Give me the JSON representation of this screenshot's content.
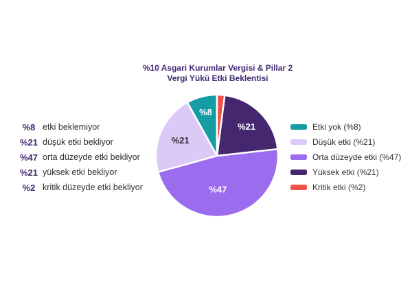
{
  "title": {
    "line1": "%10 Asgari Kurumlar Vergisi & Pillar 2",
    "line2": "Vergi Yükü Etki Beklentisi"
  },
  "left_list": {
    "items": [
      {
        "percent": "%8",
        "label": "etki beklemiyor"
      },
      {
        "percent": "%21",
        "label": "düşük etki bekliyor"
      },
      {
        "percent": "%47",
        "label": "orta düzeyde etki bekliyor"
      },
      {
        "percent": "%21",
        "label": "yüksek etki bekliyor"
      },
      {
        "percent": "%2",
        "label": "kritik düzeyde etki bekliyor"
      }
    ]
  },
  "chart_data": {
    "type": "pie",
    "title": "%10 Asgari Kurumlar Vergisi & Pillar 2 Vergi Yükü Etki Beklentisi",
    "unit": "percent",
    "direction": "counterclockwise",
    "start_angle_deg": 0,
    "legend_position": "right",
    "slices": [
      {
        "name": "Etki yok",
        "value": 8,
        "color": "#159CA4",
        "pie_label": "%8",
        "pie_label_color": "#FFFFFF",
        "legend_label": "Etki yok (%8)"
      },
      {
        "name": "Düşük etki",
        "value": 21,
        "color": "#DCC9F6",
        "pie_label": "%21",
        "pie_label_color": "#2E2E38",
        "legend_label": "Düşük etki (%21)"
      },
      {
        "name": "Orta düzeyde etki",
        "value": 47,
        "color": "#9C6CEF",
        "pie_label": "%47",
        "pie_label_color": "#FFFFFF",
        "legend_label": "Orta düzeyde etki (%47)"
      },
      {
        "name": "Yüksek etki",
        "value": 21,
        "color": "#452770",
        "pie_label": "%21",
        "pie_label_color": "#FFFFFF",
        "legend_label": "Yüksek etki (%21)"
      },
      {
        "name": "Kritik etki",
        "value": 2,
        "color": "#F0524A",
        "pie_label": "",
        "pie_label_color": "#FFFFFF",
        "legend_label": "Kritik etki (%2)"
      }
    ]
  },
  "colors": {
    "title_text": "#3F2A72",
    "percent_accent": "#43276F",
    "body_text": "#2F2F33",
    "slice_divider": "#FFFFFF",
    "background": "#FFFFFF"
  }
}
